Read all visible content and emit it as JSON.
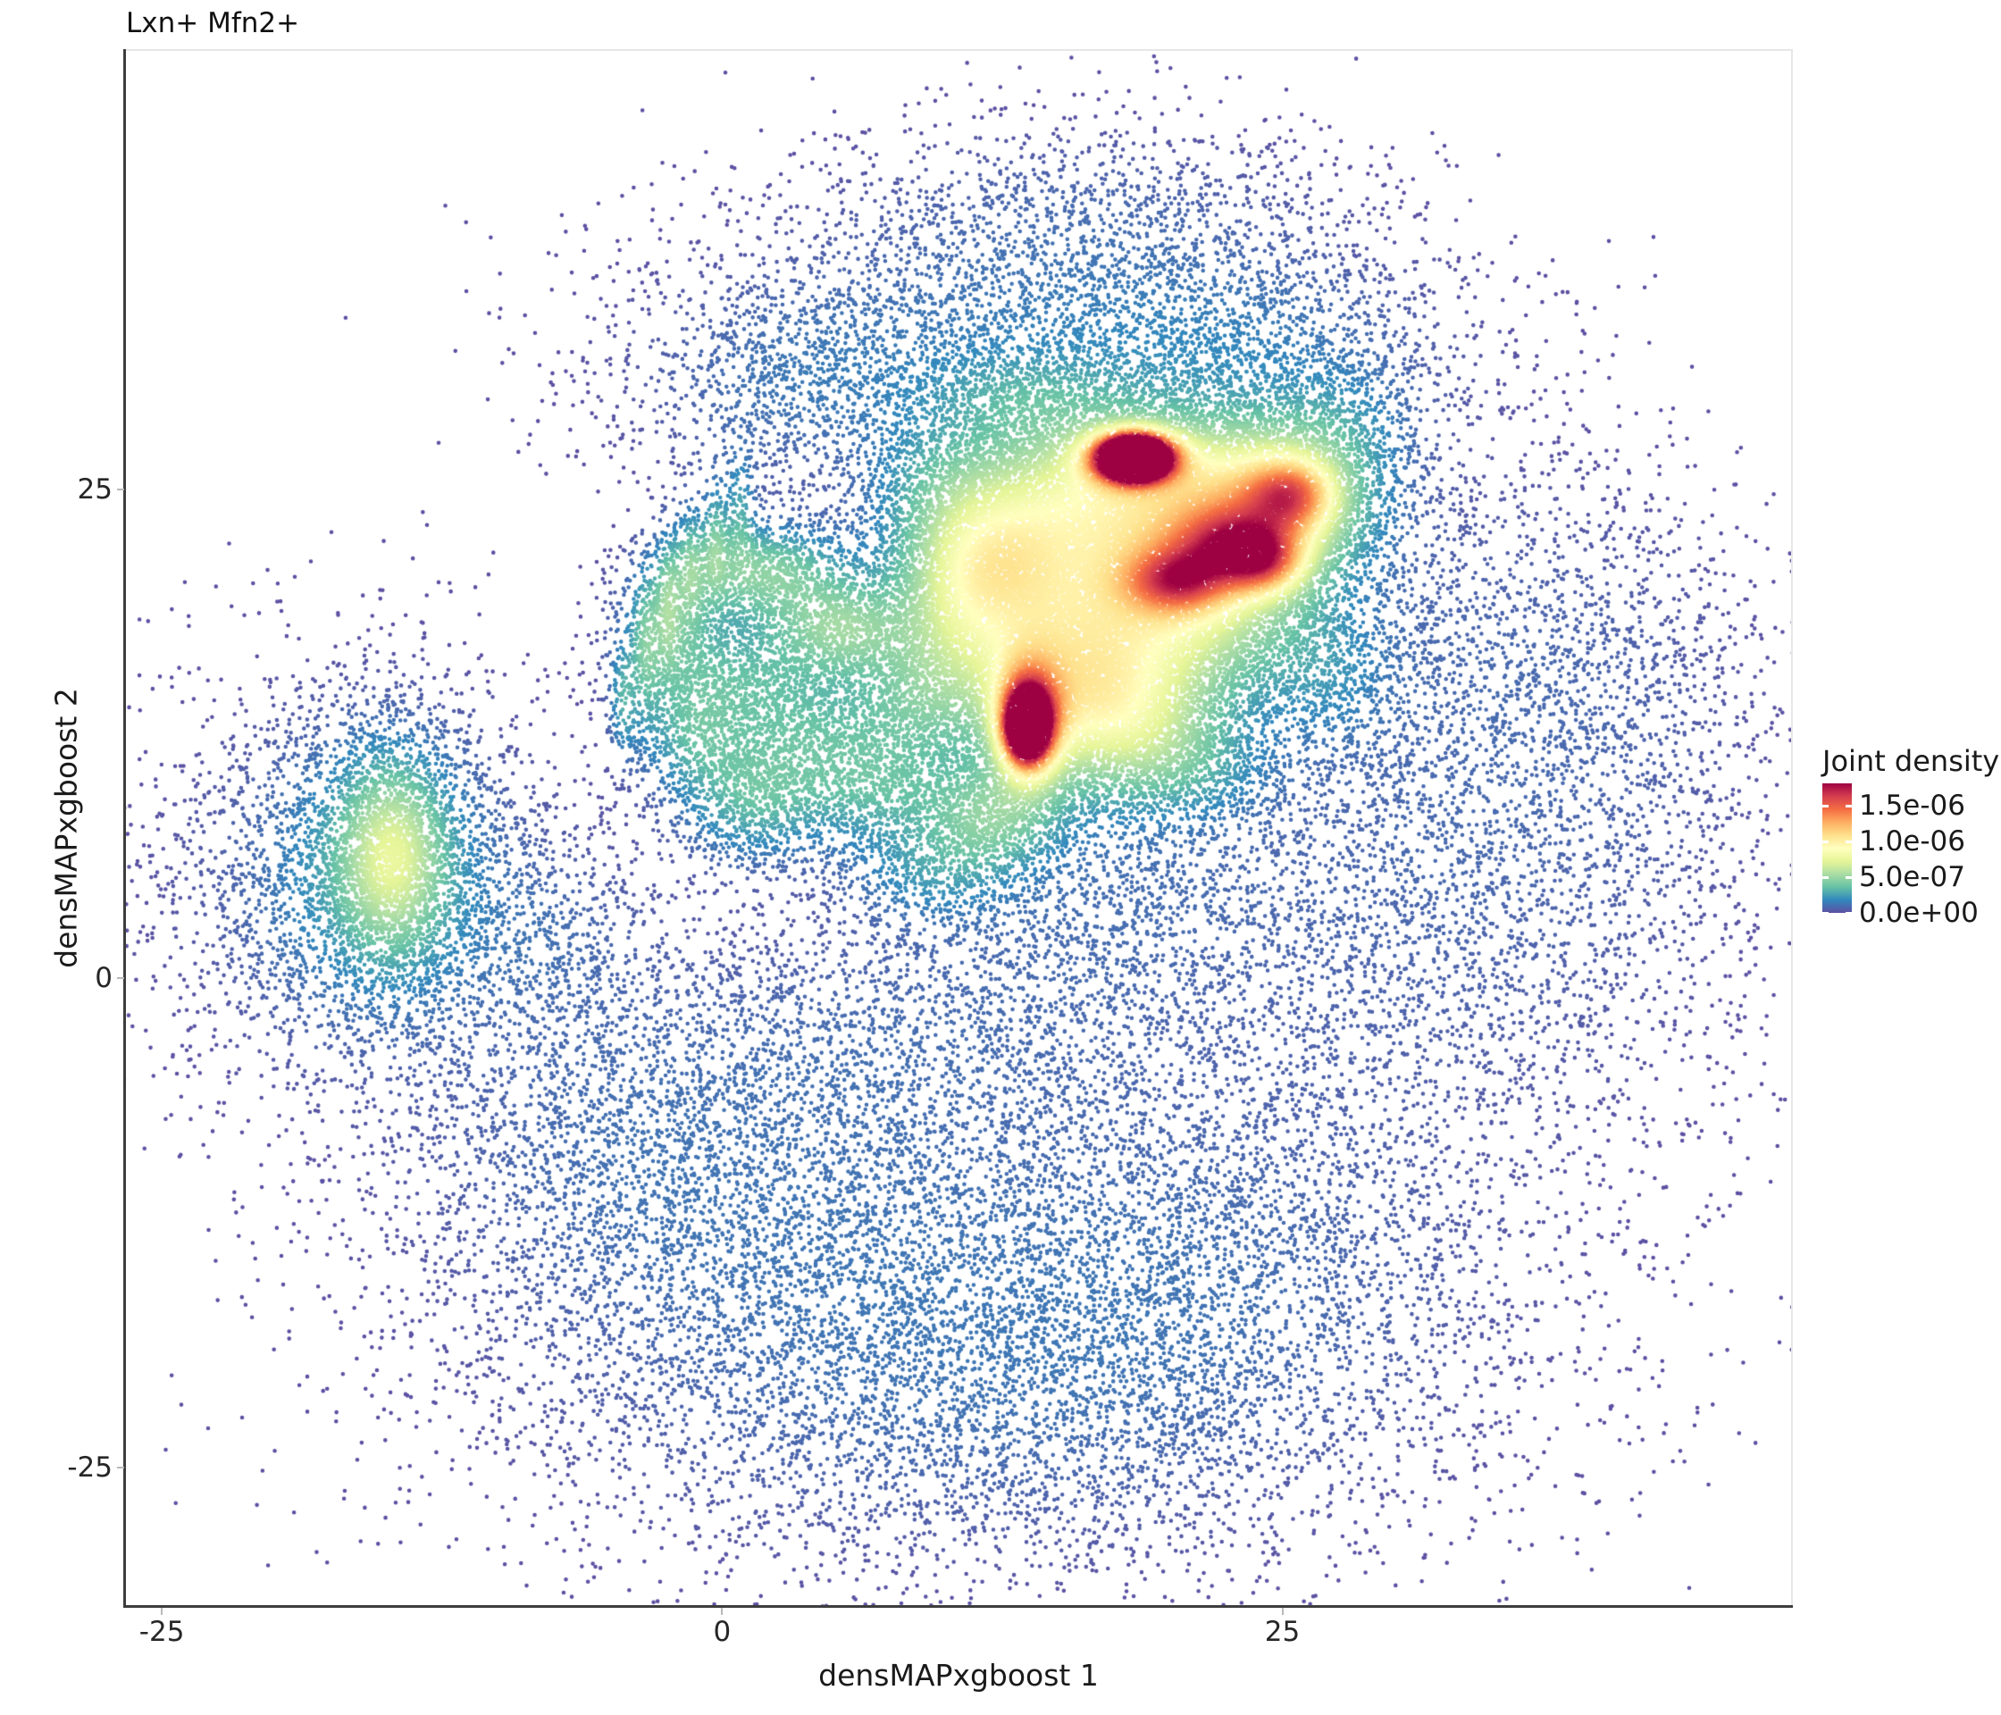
{
  "title": "Lxn+ Mfn2+",
  "legend": {
    "title": "Joint density",
    "tick_labels": [
      "1.5e-06",
      "1.0e-06",
      "5.0e-07",
      "0.0e+00"
    ],
    "tick_values": [
      1.5e-06,
      1e-06,
      5e-07,
      0
    ],
    "scale_max": 1.82e-06,
    "colormap": "Spectral-reversed",
    "colormap_stops": [
      "#5e4fa2",
      "#3288bd",
      "#66c2a5",
      "#abdda4",
      "#e6f598",
      "#ffffbf",
      "#fee08b",
      "#fdae61",
      "#f46d43",
      "#d53e4f",
      "#9e0142"
    ]
  },
  "chart_data": {
    "type": "scatter",
    "title": "Lxn+ Mfn2+",
    "xlabel": "densMAPxgboost 1",
    "ylabel": "densMAPxgboost 2",
    "x_ticks": [
      -25,
      0,
      25
    ],
    "x_tick_labels": [
      "-25",
      "0",
      "25"
    ],
    "y_ticks": [
      25,
      0,
      -25
    ],
    "y_tick_labels": [
      "25",
      "0",
      "-25"
    ],
    "x_domain": [
      -26.6,
      47.7
    ],
    "y_domain": [
      -32.1,
      47.4
    ],
    "grid": false,
    "legend_position": "right",
    "color_variable": "Joint density",
    "point_color_scale": "Spectral-reversed",
    "density_norm": 0.34,
    "n_points_total": 73060,
    "density_clusters": [
      {
        "role": "background-bottom-left",
        "x": 2,
        "y": -13,
        "sx": 9,
        "sy": 6.5,
        "n": 3800
      },
      {
        "role": "background-bottom-right",
        "x": 21,
        "y": -15,
        "sx": 9,
        "sy": 6.5,
        "n": 3600
      },
      {
        "role": "background-bottom-deep",
        "x": 11,
        "y": -23,
        "sx": 11,
        "sy": 5,
        "n": 2400
      },
      {
        "role": "background-right",
        "x": 32,
        "y": 4,
        "sx": 7,
        "sy": 8,
        "n": 2600
      },
      {
        "role": "background-right-upper",
        "x": 34,
        "y": 17,
        "sx": 6.5,
        "sy": 6,
        "n": 1600
      },
      {
        "role": "background-top",
        "x": 14,
        "y": 33.5,
        "sx": 8.5,
        "sy": 4,
        "n": 2800
      },
      {
        "role": "background-top-left",
        "x": 3,
        "y": 30,
        "sx": 4.5,
        "sy": 3.2,
        "n": 900
      },
      {
        "role": "background-top-right",
        "x": 24,
        "y": 31.5,
        "sx": 5.5,
        "sy": 3.5,
        "n": 1200
      },
      {
        "role": "background-mid-bridge",
        "x": 8,
        "y": -2.5,
        "sx": 10,
        "sy": 4,
        "n": 1800
      },
      {
        "role": "background-far-right",
        "x": 41,
        "y": 10,
        "sx": 4,
        "sy": 8,
        "n": 550
      },
      {
        "role": "background-top-fringe",
        "x": 16,
        "y": 40,
        "sx": 7,
        "sy": 2.6,
        "n": 600
      },
      {
        "role": "background-bottom-left-arm",
        "x": -6,
        "y": -8,
        "sx": 5,
        "sy": 5,
        "n": 700
      },
      {
        "role": "background-south-blue",
        "x": 17,
        "y": 5,
        "sx": 6,
        "sy": 4,
        "n": 1300
      },
      {
        "role": "left-cluster-fringe",
        "x": -16,
        "y": 4.5,
        "sx": 5.5,
        "sy": 6.2,
        "n": 2100
      },
      {
        "role": "left-cluster-mid",
        "x": -15.3,
        "y": 5.8,
        "sx": 3.1,
        "sy": 4.4,
        "n": 1700
      },
      {
        "role": "left-cluster-core",
        "x": -14.7,
        "y": 6.2,
        "sx": 1.55,
        "sy": 3.1,
        "n": 1500
      },
      {
        "role": "left-bridge",
        "x": -7.5,
        "y": 2.5,
        "sx": 3,
        "sy": 3,
        "n": 350
      },
      {
        "role": "green-lump",
        "x": 1.8,
        "y": 20.8,
        "sx": 2.4,
        "sy": 1.6,
        "n": 1060
      },
      {
        "role": "green-lump",
        "x": 5.3,
        "y": 17.9,
        "sx": 2.1,
        "sy": 1.7,
        "n": 980
      },
      {
        "role": "green-lump",
        "x": 0.6,
        "y": 15.6,
        "sx": 2.4,
        "sy": 2.1,
        "n": 850
      },
      {
        "role": "green-lump",
        "x": 4,
        "y": 12.8,
        "sx": 2.6,
        "sy": 2.1,
        "n": 890
      },
      {
        "role": "green-lump",
        "x": 1.3,
        "y": 9.2,
        "sx": 2.1,
        "sy": 2.1,
        "n": 890
      },
      {
        "role": "green-lump",
        "x": 6.6,
        "y": 9.6,
        "sx": 2.4,
        "sy": 1.9,
        "n": 770
      },
      {
        "role": "green-lump",
        "x": 8.6,
        "y": 14.2,
        "sx": 1.9,
        "sy": 2.3,
        "n": 680
      },
      {
        "role": "green-lump",
        "x": -2.4,
        "y": 17.9,
        "sx": 1.5,
        "sy": 2.4,
        "n": 550
      },
      {
        "role": "green-lump",
        "x": 9.4,
        "y": 5.6,
        "sx": 2.4,
        "sy": 1.7,
        "n": 510
      },
      {
        "role": "green-lump",
        "x": 12.1,
        "y": 7.6,
        "sx": 1.9,
        "sy": 1.5,
        "n": 430
      },
      {
        "role": "green-lump",
        "x": -1.4,
        "y": 12.4,
        "sx": 1.5,
        "sy": 1.9,
        "n": 440
      },
      {
        "role": "teal-streak",
        "x": -3.4,
        "y": 16.8,
        "sx": 0.42,
        "sy": 2.6,
        "n": 160
      },
      {
        "role": "teal-streak",
        "x": -2.4,
        "y": 19.3,
        "sx": 0.38,
        "sy": 2.4,
        "n": 150
      },
      {
        "role": "teal-streak",
        "x": -1.4,
        "y": 21.2,
        "sx": 0.42,
        "sy": 2.2,
        "n": 150
      },
      {
        "role": "teal-streak",
        "x": -0.3,
        "y": 22.7,
        "sx": 0.38,
        "sy": 2,
        "n": 130
      },
      {
        "role": "teal-streak",
        "x": 0.8,
        "y": 24.1,
        "sx": 0.42,
        "sy": 1.9,
        "n": 120
      },
      {
        "role": "teal-streak",
        "x": -4.4,
        "y": 14.2,
        "sx": 0.38,
        "sy": 1.8,
        "n": 110
      },
      {
        "role": "yellow-halo",
        "x": 17.3,
        "y": 24.6,
        "sx": 4.5,
        "sy": 3,
        "n": 6500
      },
      {
        "role": "yellow-halo",
        "x": 14.6,
        "y": 16.4,
        "sx": 3.5,
        "sy": 3.5,
        "n": 5600
      },
      {
        "role": "yellow-halo",
        "x": 20.8,
        "y": 19.2,
        "sx": 3.5,
        "sy": 3,
        "n": 4400
      },
      {
        "role": "yellow-halo",
        "x": 24.3,
        "y": 24.3,
        "sx": 2.8,
        "sy": 2.5,
        "n": 3400
      },
      {
        "role": "yellow-halo",
        "x": 11.6,
        "y": 21.3,
        "sx": 2.5,
        "sy": 2.5,
        "n": 2400
      },
      {
        "role": "yellow-halo",
        "x": 17.8,
        "y": 13.2,
        "sx": 3,
        "sy": 2.5,
        "n": 2400
      },
      {
        "role": "orange-ridge",
        "x": 20.3,
        "y": 20.3,
        "sx": 1.6,
        "sy": 1.1,
        "n": 840
      },
      {
        "role": "orange-ridge",
        "x": 22.7,
        "y": 22.1,
        "sx": 1.8,
        "sy": 1.3,
        "n": 1000
      },
      {
        "role": "orange-ridge",
        "x": 25.4,
        "y": 24.7,
        "sx": 1.3,
        "sy": 1.2,
        "n": 720
      },
      {
        "role": "orange-ridge",
        "x": 24.2,
        "y": 21.3,
        "sx": 1.2,
        "sy": 1.1,
        "n": 560
      },
      {
        "role": "red-core-top",
        "x": 18.4,
        "y": 26.6,
        "sx": 1.25,
        "sy": 0.85,
        "n": 1600
      },
      {
        "role": "red-core-top-inner",
        "x": 18.4,
        "y": 26.6,
        "sx": 0.72,
        "sy": 0.55,
        "n": 500
      },
      {
        "role": "red-core-left",
        "x": 13.7,
        "y": 13.1,
        "sx": 0.95,
        "sy": 1.9,
        "n": 1500
      },
      {
        "role": "red-core-left-inner",
        "x": 13.6,
        "y": 12.8,
        "sx": 0.6,
        "sy": 1.1,
        "n": 650
      },
      {
        "role": "teal-ring",
        "x": 12,
        "y": 9.3,
        "sx": 2.4,
        "sy": 1.5,
        "n": 420
      },
      {
        "role": "teal-ring",
        "x": 21,
        "y": 10.6,
        "sx": 2.4,
        "sy": 1.7,
        "n": 380
      },
      {
        "role": "teal-ring",
        "x": 27,
        "y": 15.5,
        "sx": 1.9,
        "sy": 2.4,
        "n": 380
      },
      {
        "role": "teal-ring",
        "x": 27.6,
        "y": 28,
        "sx": 2,
        "sy": 2,
        "n": 340
      },
      {
        "role": "teal-ring",
        "x": 13,
        "y": 29.8,
        "sx": 3,
        "sy": 1.5,
        "n": 420
      },
      {
        "role": "teal-ring",
        "x": 9.6,
        "y": 25.6,
        "sx": 2,
        "sy": 2,
        "n": 340
      },
      {
        "role": "teal-ring",
        "x": 10.4,
        "y": 18,
        "sx": 1.6,
        "sy": 2.2,
        "n": 340
      }
    ]
  }
}
